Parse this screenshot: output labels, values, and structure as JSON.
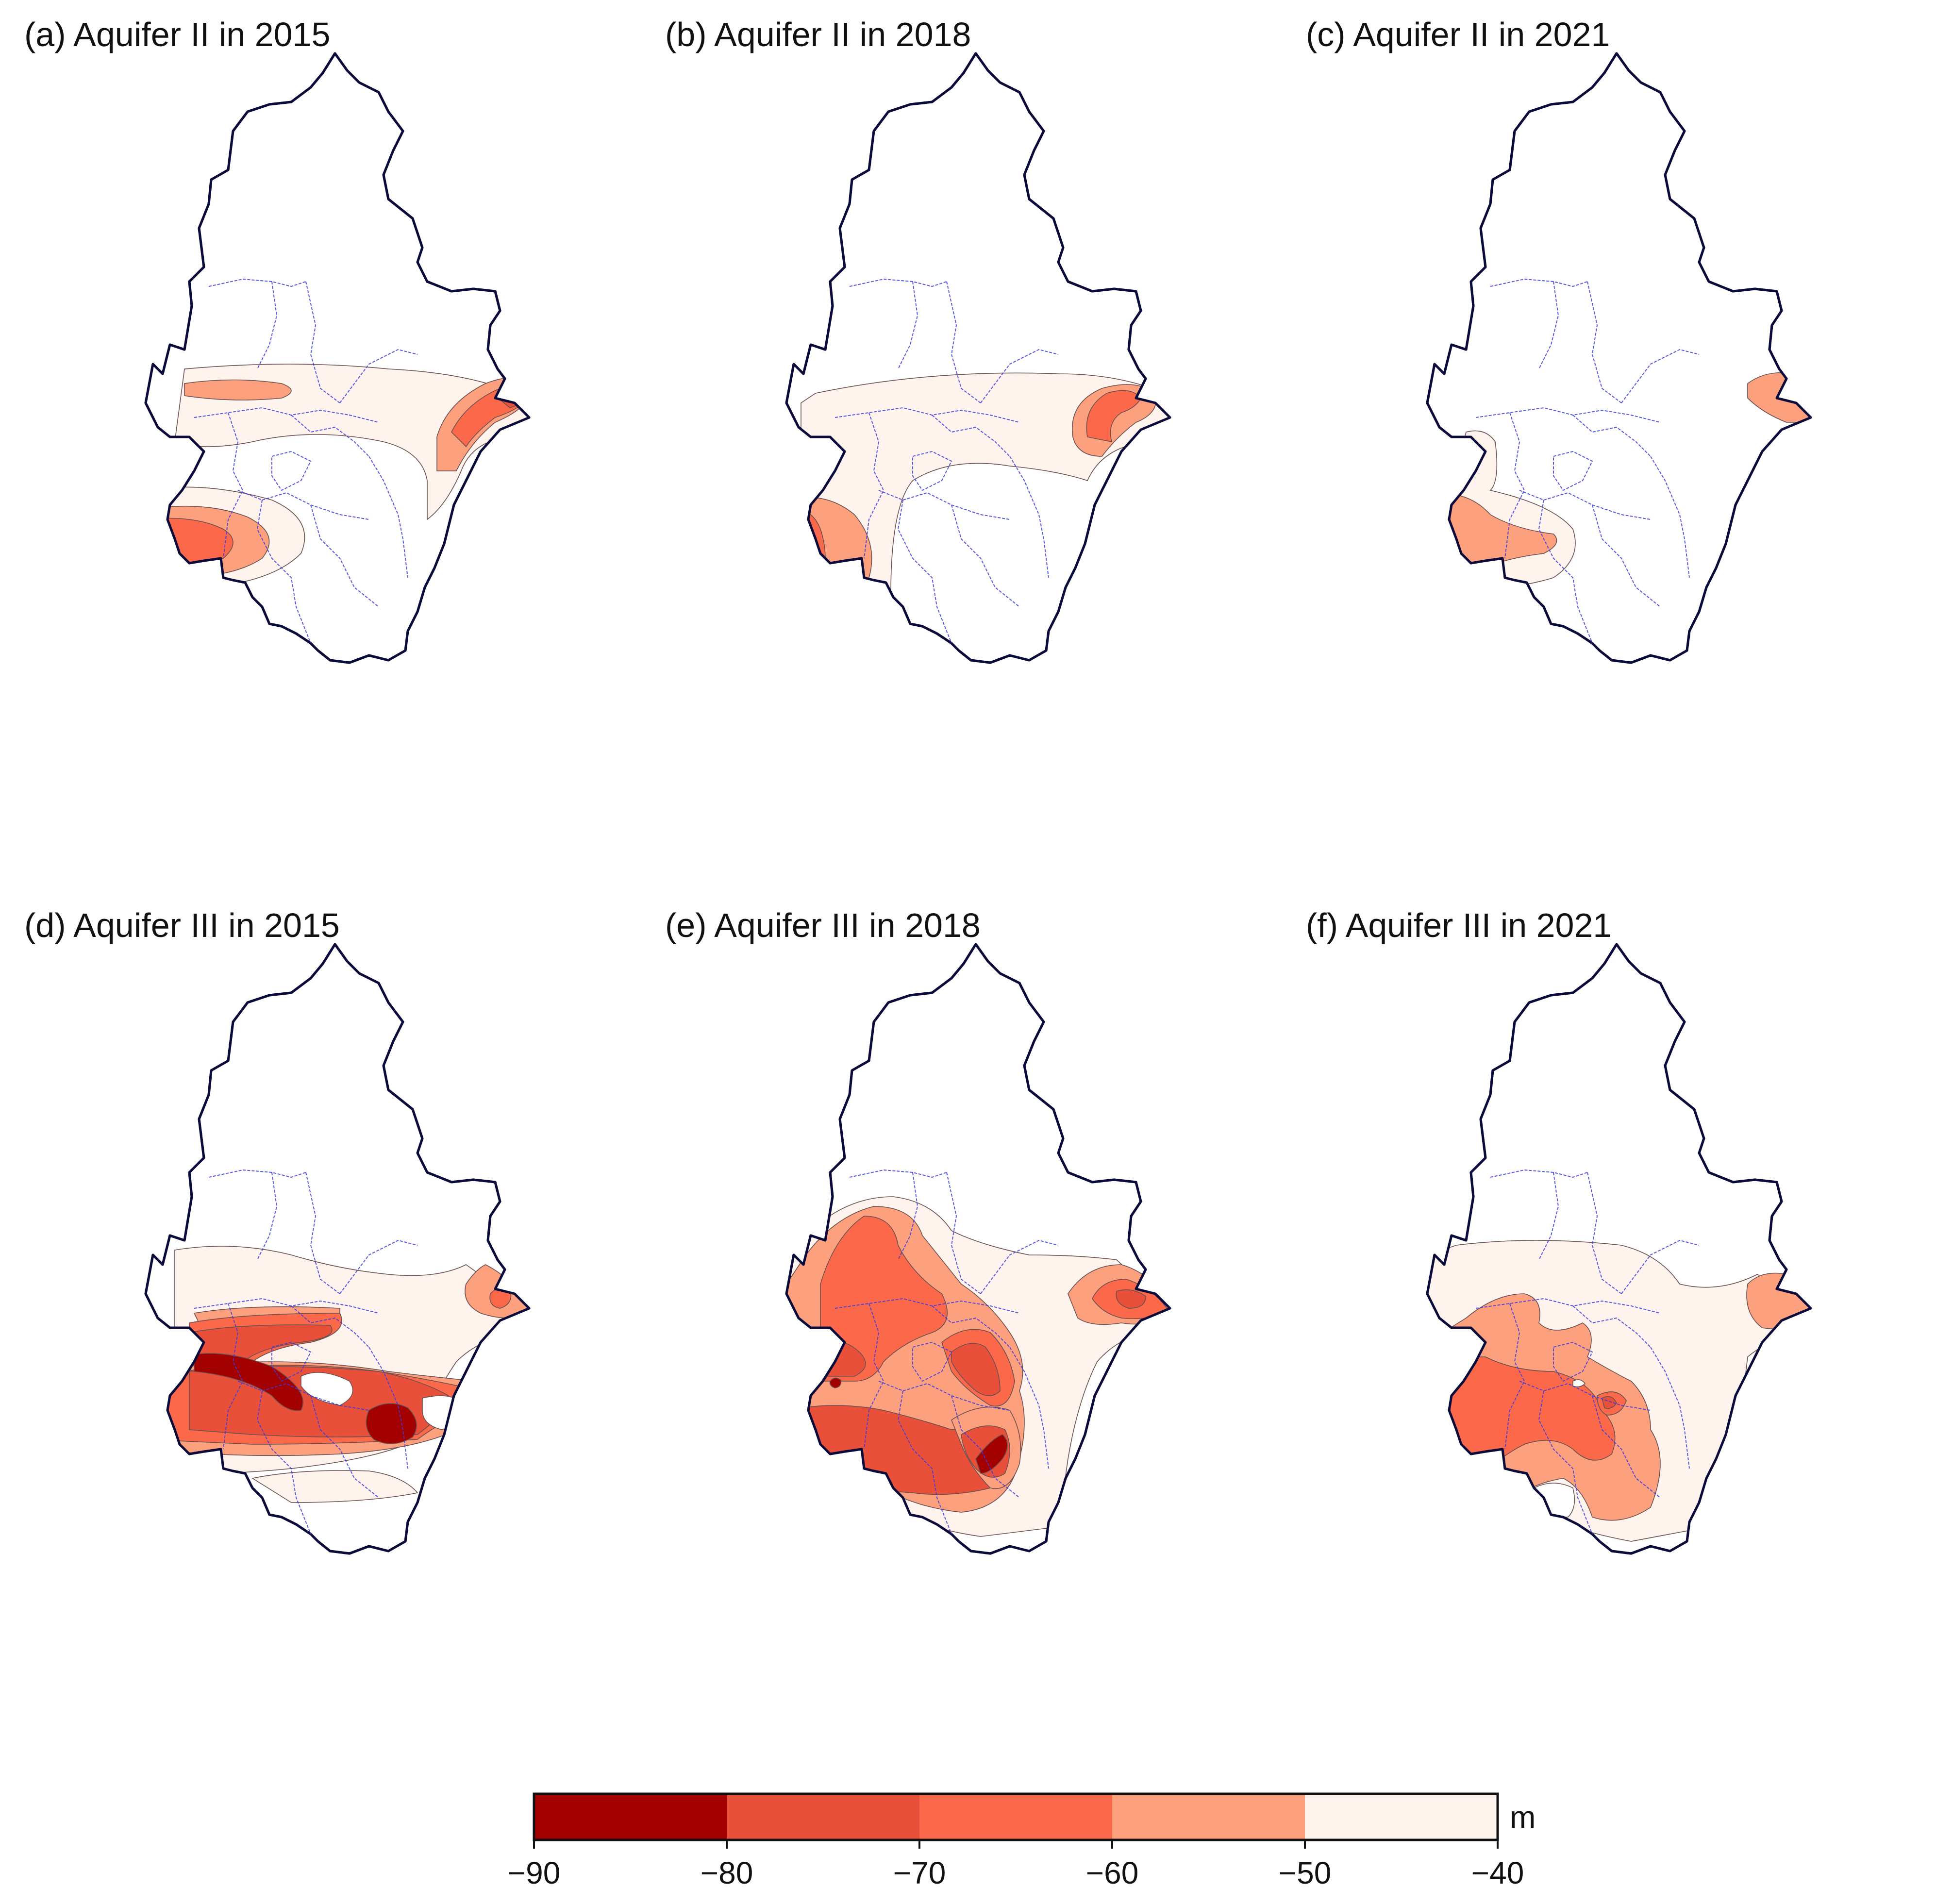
{
  "figure": {
    "panels": [
      {
        "id": "a",
        "title": "(a) Aquifer II in 2015"
      },
      {
        "id": "b",
        "title": "(b) Aquifer II in 2018"
      },
      {
        "id": "c",
        "title": "(c) Aquifer II in 2021"
      },
      {
        "id": "d",
        "title": "(d) Aquifer III in 2015"
      },
      {
        "id": "e",
        "title": "(e) Aquifer III in 2018"
      },
      {
        "id": "f",
        "title": "(f) Aquifer III in 2021"
      }
    ],
    "colorbar": {
      "unit": "m",
      "ticks": [
        "−90",
        "−80",
        "−70",
        "−60",
        "−50",
        "−40"
      ],
      "levels": [
        {
          "from": -90,
          "to": -80,
          "color": "#a30000"
        },
        {
          "from": -80,
          "to": -70,
          "color": "#e8503a"
        },
        {
          "from": -70,
          "to": -60,
          "color": "#fc694a"
        },
        {
          "from": -60,
          "to": -50,
          "color": "#fca07e"
        },
        {
          "from": -50,
          "to": -40,
          "color": "#fff3ee"
        }
      ]
    },
    "boundary_colors": {
      "outline": "#0b0b3b",
      "districts": "#3a3ae0"
    }
  }
}
